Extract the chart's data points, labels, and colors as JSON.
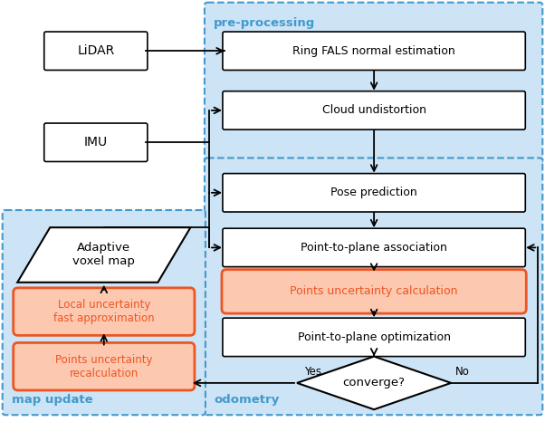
{
  "bg_color": "#ffffff",
  "box_fill": "#cce4f5",
  "box_edge": "#4499cc",
  "node_fill_white": "#ffffff",
  "node_fill_orange": "#fcc8b0",
  "node_edge_black": "#000000",
  "node_edge_orange": "#ee5522",
  "text_orange": "#ee5522",
  "text_black": "#000000",
  "text_blue": "#4499cc",
  "lidar_label": "LiDAR",
  "imu_label": "IMU",
  "ring_label": "Ring FALS normal estimation",
  "cloud_label": "Cloud undistortion",
  "pose_label": "Pose prediction",
  "assoc_label": "Point-to-plane association",
  "uncert_label": "Points uncertainty calculation",
  "optim_label": "Point-to-plane optimization",
  "conv_label": "converge?",
  "adapt_label": "Adaptive\nvoxel map",
  "local_label": "Local uncertainty\nfast approximation",
  "recalc_label": "Points uncertainty\nrecalculation",
  "pre_label": "pre-processing",
  "odo_label": "odometry",
  "map_label": "map update",
  "yes_label": "Yes",
  "no_label": "No"
}
